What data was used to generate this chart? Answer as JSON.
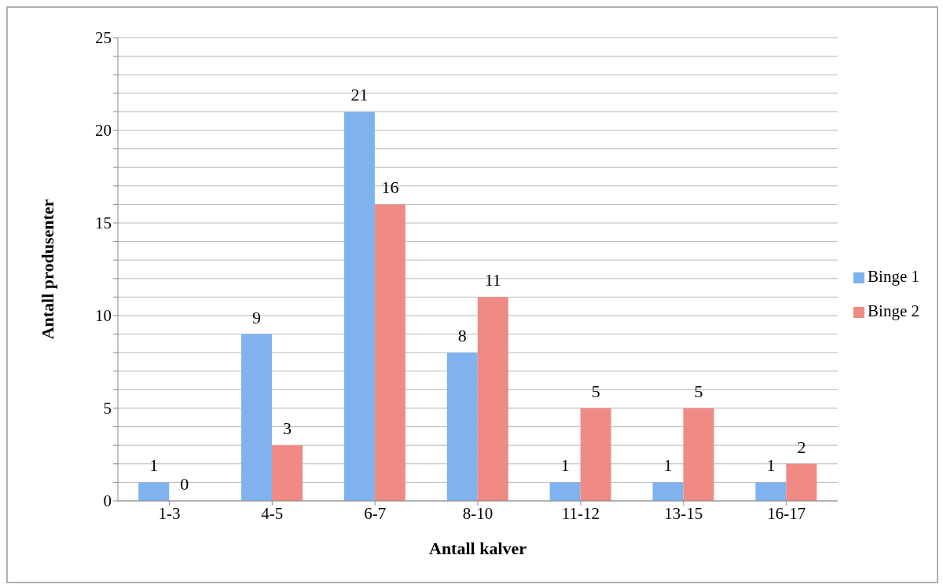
{
  "chart_data": {
    "type": "bar",
    "xlabel": "Antall kalver",
    "ylabel": "Antall produsenter",
    "categories": [
      "1-3",
      "4-5",
      "6-7",
      "8-10",
      "11-12",
      "13-15",
      "16-17"
    ],
    "series": [
      {
        "name": "Binge 1",
        "color": "#7fb2ee",
        "values": [
          1,
          9,
          21,
          8,
          1,
          1,
          1
        ]
      },
      {
        "name": "Binge 2",
        "color": "#ef8a84",
        "values": [
          0,
          3,
          16,
          11,
          5,
          5,
          2
        ]
      }
    ],
    "ylim": [
      0,
      25
    ],
    "yticks": [
      0,
      {
        "value": 1,
        "label": null
      },
      {
        "value": 2,
        "label": null
      },
      {
        "value": 3,
        "label": null
      },
      {
        "value": 4,
        "label": null
      },
      5,
      {
        "value": 6,
        "label": null
      },
      {
        "value": 7,
        "label": null
      },
      {
        "value": 8,
        "label": null
      },
      {
        "value": 9,
        "label": null
      },
      10,
      {
        "value": 11,
        "label": null
      },
      {
        "value": 12,
        "label": null
      },
      {
        "value": 13,
        "label": null
      },
      {
        "value": 14,
        "label": null
      },
      15,
      {
        "value": 16,
        "label": null
      },
      {
        "value": 17,
        "label": null
      },
      {
        "value": 18,
        "label": null
      },
      {
        "value": 19,
        "label": null
      },
      20,
      {
        "value": 21,
        "label": null
      },
      {
        "value": 22,
        "label": null
      },
      {
        "value": 23,
        "label": null
      },
      {
        "value": 24,
        "label": null
      },
      25
    ],
    "grid": "y",
    "legend": "right",
    "data_labels": true
  }
}
